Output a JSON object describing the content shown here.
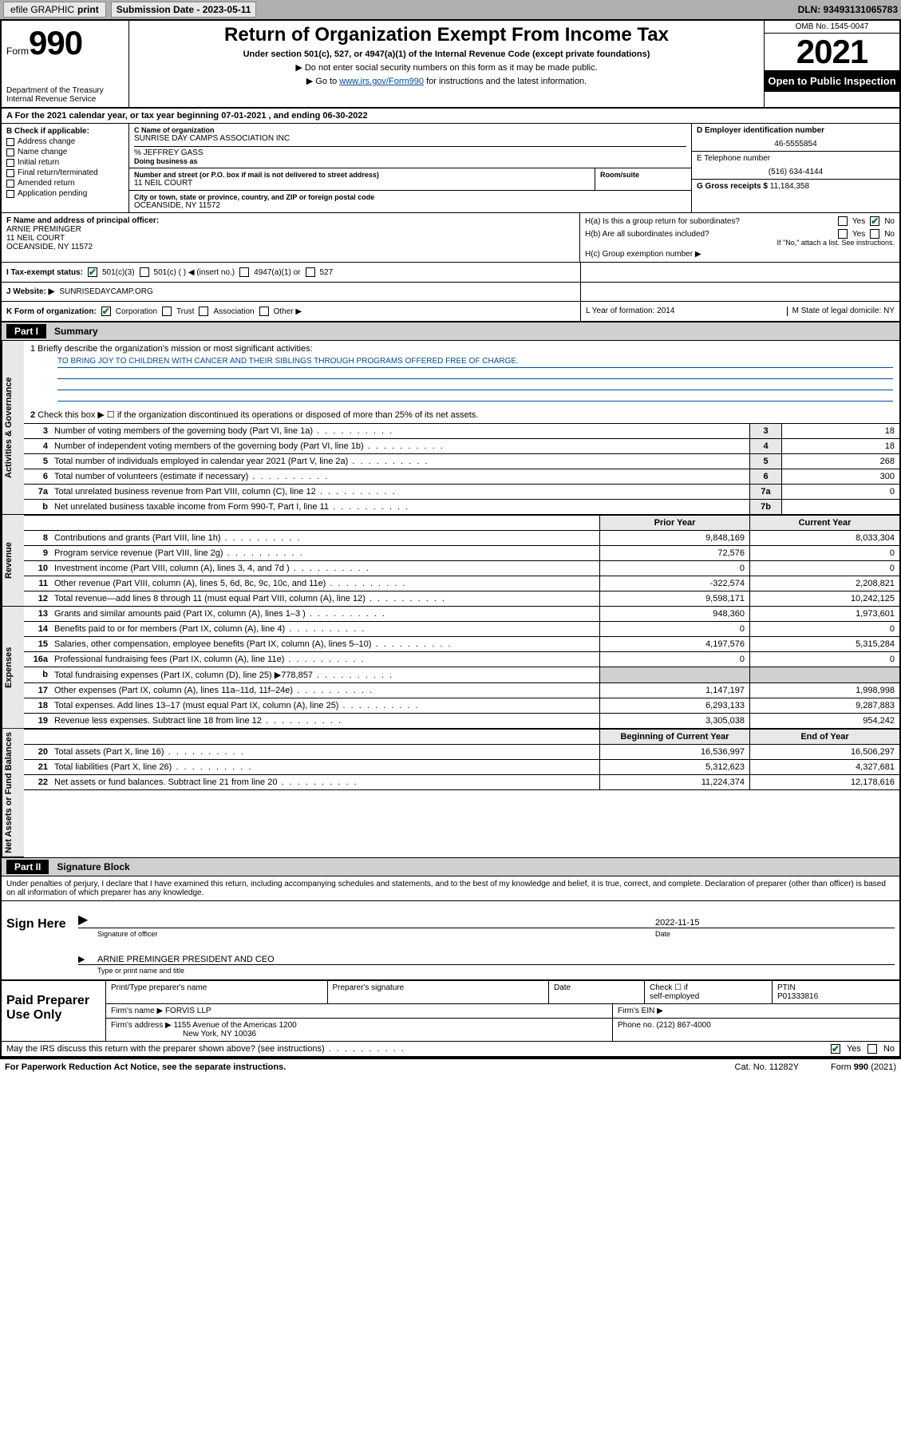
{
  "topbar": {
    "efile": "efile GRAPHIC",
    "print": "print",
    "sub_label": "Submission Date - 2023-05-11",
    "dln": "DLN: 93493131065783"
  },
  "header": {
    "form_word": "Form",
    "form_num": "990",
    "title": "Return of Organization Exempt From Income Tax",
    "subtitle": "Under section 501(c), 527, or 4947(a)(1) of the Internal Revenue Code (except private foundations)",
    "note1": "▶ Do not enter social security numbers on this form as it may be made public.",
    "note2_pre": "▶ Go to ",
    "note2_link": "www.irs.gov/Form990",
    "note2_post": " for instructions and the latest information.",
    "dept": "Department of the Treasury",
    "irs": "Internal Revenue Service",
    "omb": "OMB No. 1545-0047",
    "year": "2021",
    "open": "Open to Public Inspection"
  },
  "rowA": "A For the 2021 calendar year, or tax year beginning 07-01-2021   , and ending 06-30-2022",
  "checkB": {
    "header": "B Check if applicable:",
    "opts": [
      "Address change",
      "Name change",
      "Initial return",
      "Final return/terminated",
      "Amended return",
      "Application pending"
    ]
  },
  "org": {
    "name_label": "C Name of organization",
    "name": "SUNRISE DAY CAMPS ASSOCIATION INC",
    "careof": "% JEFFREY GASS",
    "dba_label": "Doing business as",
    "street_label": "Number and street (or P.O. box if mail is not delivered to street address)",
    "room_label": "Room/suite",
    "street": "11 NEIL COURT",
    "city_label": "City or town, state or province, country, and ZIP or foreign postal code",
    "city": "OCEANSIDE, NY  11572"
  },
  "right": {
    "ein_label": "D Employer identification number",
    "ein": "46-5555854",
    "phone_label": "E Telephone number",
    "phone": "(516) 634-4144",
    "gross_label": "G Gross receipts $",
    "gross": "11,184,358"
  },
  "officer": {
    "label": "F  Name and address of principal officer:",
    "name": "ARNIE PREMINGER",
    "addr1": "11 NEIL COURT",
    "addr2": "OCEANSIDE, NY  11572"
  },
  "hsection": {
    "ha": "H(a)  Is this a group return for subordinates?",
    "hb": "H(b)  Are all subordinates included?",
    "hnote": "If \"No,\" attach a list. See instructions.",
    "hc": "H(c)  Group exemption number ▶",
    "yes": "Yes",
    "no": "No"
  },
  "taxrow": {
    "label": "I   Tax-exempt status:",
    "o1": "501(c)(3)",
    "o2": "501(c) (   ) ◀ (insert no.)",
    "o3": "4947(a)(1) or",
    "o4": "527"
  },
  "webrow": {
    "label": "J   Website: ▶",
    "value": "  SUNRISEDAYCAMP.ORG"
  },
  "krow": {
    "label": "K Form of organization:",
    "o1": "Corporation",
    "o2": "Trust",
    "o3": "Association",
    "o4": "Other ▶",
    "lyear": "L Year of formation: 2014",
    "mstate": "M State of legal domicile: NY"
  },
  "part1": {
    "label": "Part I",
    "title": "Summary"
  },
  "mission": {
    "q": "1   Briefly describe the organization's mission or most significant activities:",
    "text": "TO BRING JOY TO CHILDREN WITH CANCER AND THEIR SIBLINGS THROUGH PROGRAMS OFFERED FREE OF CHARGE."
  },
  "gov_lines": [
    {
      "n": "2",
      "t": "Check this box ▶ ☐  if the organization discontinued its operations or disposed of more than 25% of its net assets.",
      "b": "",
      "a": ""
    },
    {
      "n": "3",
      "t": "Number of voting members of the governing body (Part VI, line 1a)",
      "b": "3",
      "a": "18"
    },
    {
      "n": "4",
      "t": "Number of independent voting members of the governing body (Part VI, line 1b)",
      "b": "4",
      "a": "18"
    },
    {
      "n": "5",
      "t": "Total number of individuals employed in calendar year 2021 (Part V, line 2a)",
      "b": "5",
      "a": "268"
    },
    {
      "n": "6",
      "t": "Total number of volunteers (estimate if necessary)",
      "b": "6",
      "a": "300"
    },
    {
      "n": "7a",
      "t": "Total unrelated business revenue from Part VIII, column (C), line 12",
      "b": "7a",
      "a": "0"
    },
    {
      "n": "b",
      "t": "Net unrelated business taxable income from Form 990-T, Part I, line 11",
      "b": "7b",
      "a": ""
    }
  ],
  "two_hdr": {
    "b": "",
    "prior": "Prior Year",
    "curr": "Current Year"
  },
  "revenue": [
    {
      "n": "8",
      "t": "Contributions and grants (Part VIII, line 1h)",
      "p": "9,848,169",
      "c": "8,033,304"
    },
    {
      "n": "9",
      "t": "Program service revenue (Part VIII, line 2g)",
      "p": "72,576",
      "c": "0"
    },
    {
      "n": "10",
      "t": "Investment income (Part VIII, column (A), lines 3, 4, and 7d )",
      "p": "0",
      "c": "0"
    },
    {
      "n": "11",
      "t": "Other revenue (Part VIII, column (A), lines 5, 6d, 8c, 9c, 10c, and 11e)",
      "p": "-322,574",
      "c": "2,208,821"
    },
    {
      "n": "12",
      "t": "Total revenue—add lines 8 through 11 (must equal Part VIII, column (A), line 12)",
      "p": "9,598,171",
      "c": "10,242,125"
    }
  ],
  "expenses": [
    {
      "n": "13",
      "t": "Grants and similar amounts paid (Part IX, column (A), lines 1–3 )",
      "p": "948,360",
      "c": "1,973,601"
    },
    {
      "n": "14",
      "t": "Benefits paid to or for members (Part IX, column (A), line 4)",
      "p": "0",
      "c": "0"
    },
    {
      "n": "15",
      "t": "Salaries, other compensation, employee benefits (Part IX, column (A), lines 5–10)",
      "p": "4,197,576",
      "c": "5,315,284"
    },
    {
      "n": "16a",
      "t": "Professional fundraising fees (Part IX, column (A), line 11e)",
      "p": "0",
      "c": "0"
    },
    {
      "n": "b",
      "t": "Total fundraising expenses (Part IX, column (D), line 25) ▶778,857",
      "p": "",
      "c": "",
      "shade": true
    },
    {
      "n": "17",
      "t": "Other expenses (Part IX, column (A), lines 11a–11d, 11f–24e)",
      "p": "1,147,197",
      "c": "1,998,998"
    },
    {
      "n": "18",
      "t": "Total expenses. Add lines 13–17 (must equal Part IX, column (A), line 25)",
      "p": "6,293,133",
      "c": "9,287,883"
    },
    {
      "n": "19",
      "t": "Revenue less expenses. Subtract line 18 from line 12",
      "p": "3,305,038",
      "c": "954,242"
    }
  ],
  "na_hdr": {
    "prior": "Beginning of Current Year",
    "curr": "End of Year"
  },
  "netassets": [
    {
      "n": "20",
      "t": "Total assets (Part X, line 16)",
      "p": "16,536,997",
      "c": "16,506,297"
    },
    {
      "n": "21",
      "t": "Total liabilities (Part X, line 26)",
      "p": "5,312,623",
      "c": "4,327,681"
    },
    {
      "n": "22",
      "t": "Net assets or fund balances. Subtract line 21 from line 20",
      "p": "11,224,374",
      "c": "12,178,616"
    }
  ],
  "vtabs": {
    "gov": "Activities & Governance",
    "rev": "Revenue",
    "exp": "Expenses",
    "na": "Net Assets or Fund Balances"
  },
  "part2": {
    "label": "Part II",
    "title": "Signature Block"
  },
  "sig": {
    "intro": "Under penalties of perjury, I declare that I have examined this return, including accompanying schedules and statements, and to the best of my knowledge and belief, it is true, correct, and complete. Declaration of preparer (other than officer) is based on all information of which preparer has any knowledge.",
    "sign_here": "Sign Here",
    "date": "2022-11-15",
    "sig_officer": "Signature of officer",
    "date_lbl": "Date",
    "name_title": "ARNIE PREMINGER  PRESIDENT AND CEO",
    "name_cap": "Type or print name and title"
  },
  "paid": {
    "label": "Paid Preparer Use Only",
    "h1": "Print/Type preparer's name",
    "h2": "Preparer's signature",
    "h3": "Date",
    "h4a": "Check ☐ if",
    "h4b": "self-employed",
    "h5a": "PTIN",
    "h5b": "P01333816",
    "firm_label": "Firm's name    ▶",
    "firm": "FORVIS LLP",
    "ein_label": "Firm's EIN ▶",
    "addr_label": "Firm's address ▶",
    "addr1": "1155 Avenue of the Americas 1200",
    "addr2": "New York, NY  10036",
    "phone_label": "Phone no.",
    "phone": "(212) 867-4000"
  },
  "discuss": {
    "q": "May the IRS discuss this return with the preparer shown above? (see instructions)",
    "yes": "Yes",
    "no": "No"
  },
  "footer": {
    "left": "For Paperwork Reduction Act Notice, see the separate instructions.",
    "mid": "Cat. No. 11282Y",
    "right_a": "Form ",
    "right_b": "990",
    "right_c": " (2021)"
  }
}
